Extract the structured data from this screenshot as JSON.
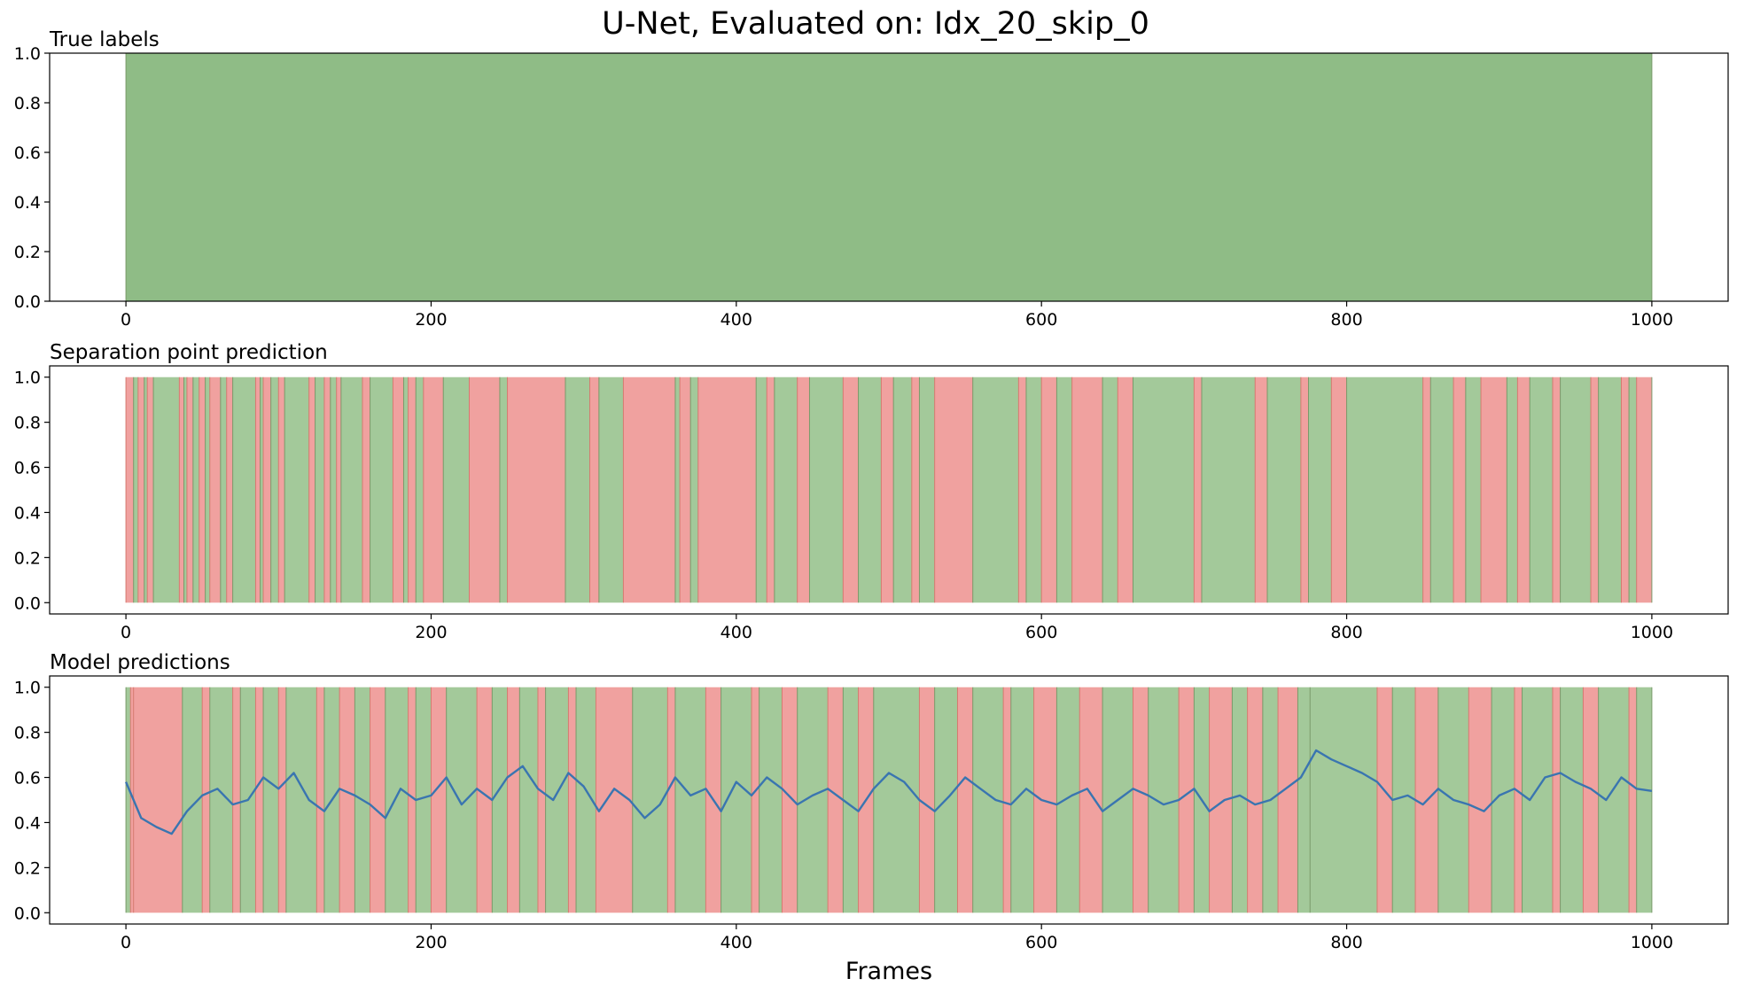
{
  "figure": {
    "title": "U-Net, Evaluated on: Idx_20_skip_0",
    "xlabel": "Frames"
  },
  "colors": {
    "positive": "#8fbc86",
    "positive_light": "#a3c99a",
    "negative": "#f0a19f",
    "line": "#3a75b0",
    "axes": "#000000"
  },
  "chart_data": [
    {
      "type": "area",
      "title": "True labels",
      "xlim": [
        -50,
        1050
      ],
      "ylim": [
        0,
        1
      ],
      "xticks": [
        "0",
        "200",
        "400",
        "600",
        "800",
        "1000"
      ],
      "yticks": [
        "0.0",
        "0.2",
        "0.4",
        "0.6",
        "0.8",
        "1.0"
      ],
      "segments": [
        {
          "start": 0,
          "end": 1000,
          "label": 1
        }
      ]
    },
    {
      "type": "area",
      "title": "Separation point prediction",
      "xlim": [
        -50,
        1050
      ],
      "ylim": [
        -0.05,
        1.05
      ],
      "xticks": [
        "0",
        "200",
        "400",
        "600",
        "800",
        "1000"
      ],
      "yticks": [
        "0.0",
        "0.2",
        "0.4",
        "0.6",
        "0.8",
        "1.0"
      ],
      "segments": [
        {
          "start": 0,
          "end": 5,
          "label": 0
        },
        {
          "start": 5,
          "end": 8,
          "label": 1
        },
        {
          "start": 8,
          "end": 12,
          "label": 0
        },
        {
          "start": 12,
          "end": 14,
          "label": 1
        },
        {
          "start": 14,
          "end": 18,
          "label": 0
        },
        {
          "start": 18,
          "end": 35,
          "label": 1
        },
        {
          "start": 35,
          "end": 38,
          "label": 0
        },
        {
          "start": 38,
          "end": 40,
          "label": 1
        },
        {
          "start": 40,
          "end": 44,
          "label": 0
        },
        {
          "start": 44,
          "end": 48,
          "label": 1
        },
        {
          "start": 48,
          "end": 52,
          "label": 0
        },
        {
          "start": 52,
          "end": 55,
          "label": 1
        },
        {
          "start": 55,
          "end": 62,
          "label": 0
        },
        {
          "start": 62,
          "end": 66,
          "label": 1
        },
        {
          "start": 66,
          "end": 70,
          "label": 0
        },
        {
          "start": 70,
          "end": 85,
          "label": 1
        },
        {
          "start": 85,
          "end": 88,
          "label": 0
        },
        {
          "start": 88,
          "end": 90,
          "label": 1
        },
        {
          "start": 90,
          "end": 95,
          "label": 0
        },
        {
          "start": 95,
          "end": 100,
          "label": 1
        },
        {
          "start": 100,
          "end": 104,
          "label": 0
        },
        {
          "start": 104,
          "end": 120,
          "label": 1
        },
        {
          "start": 120,
          "end": 124,
          "label": 0
        },
        {
          "start": 124,
          "end": 130,
          "label": 1
        },
        {
          "start": 130,
          "end": 134,
          "label": 0
        },
        {
          "start": 134,
          "end": 138,
          "label": 1
        },
        {
          "start": 138,
          "end": 141,
          "label": 0
        },
        {
          "start": 141,
          "end": 155,
          "label": 1
        },
        {
          "start": 155,
          "end": 160,
          "label": 0
        },
        {
          "start": 160,
          "end": 175,
          "label": 1
        },
        {
          "start": 175,
          "end": 182,
          "label": 0
        },
        {
          "start": 182,
          "end": 185,
          "label": 1
        },
        {
          "start": 185,
          "end": 190,
          "label": 0
        },
        {
          "start": 190,
          "end": 195,
          "label": 1
        },
        {
          "start": 195,
          "end": 208,
          "label": 0
        },
        {
          "start": 208,
          "end": 225,
          "label": 1
        },
        {
          "start": 225,
          "end": 245,
          "label": 0
        },
        {
          "start": 245,
          "end": 250,
          "label": 1
        },
        {
          "start": 250,
          "end": 288,
          "label": 0
        },
        {
          "start": 288,
          "end": 304,
          "label": 1
        },
        {
          "start": 304,
          "end": 310,
          "label": 0
        },
        {
          "start": 310,
          "end": 326,
          "label": 1
        },
        {
          "start": 326,
          "end": 360,
          "label": 0
        },
        {
          "start": 360,
          "end": 363,
          "label": 1
        },
        {
          "start": 363,
          "end": 370,
          "label": 0
        },
        {
          "start": 370,
          "end": 375,
          "label": 1
        },
        {
          "start": 375,
          "end": 413,
          "label": 0
        },
        {
          "start": 413,
          "end": 420,
          "label": 1
        },
        {
          "start": 420,
          "end": 425,
          "label": 0
        },
        {
          "start": 425,
          "end": 440,
          "label": 1
        },
        {
          "start": 440,
          "end": 448,
          "label": 0
        },
        {
          "start": 448,
          "end": 470,
          "label": 1
        },
        {
          "start": 470,
          "end": 480,
          "label": 0
        },
        {
          "start": 480,
          "end": 495,
          "label": 1
        },
        {
          "start": 495,
          "end": 503,
          "label": 0
        },
        {
          "start": 503,
          "end": 515,
          "label": 1
        },
        {
          "start": 515,
          "end": 520,
          "label": 0
        },
        {
          "start": 520,
          "end": 530,
          "label": 1
        },
        {
          "start": 530,
          "end": 555,
          "label": 0
        },
        {
          "start": 555,
          "end": 585,
          "label": 1
        },
        {
          "start": 585,
          "end": 590,
          "label": 0
        },
        {
          "start": 590,
          "end": 600,
          "label": 1
        },
        {
          "start": 600,
          "end": 610,
          "label": 0
        },
        {
          "start": 610,
          "end": 620,
          "label": 1
        },
        {
          "start": 620,
          "end": 640,
          "label": 0
        },
        {
          "start": 640,
          "end": 650,
          "label": 1
        },
        {
          "start": 650,
          "end": 660,
          "label": 0
        },
        {
          "start": 660,
          "end": 700,
          "label": 1
        },
        {
          "start": 700,
          "end": 705,
          "label": 0
        },
        {
          "start": 705,
          "end": 740,
          "label": 1
        },
        {
          "start": 740,
          "end": 748,
          "label": 0
        },
        {
          "start": 748,
          "end": 770,
          "label": 1
        },
        {
          "start": 770,
          "end": 775,
          "label": 0
        },
        {
          "start": 775,
          "end": 790,
          "label": 1
        },
        {
          "start": 790,
          "end": 800,
          "label": 0
        },
        {
          "start": 800,
          "end": 850,
          "label": 1
        },
        {
          "start": 850,
          "end": 855,
          "label": 0
        },
        {
          "start": 855,
          "end": 870,
          "label": 1
        },
        {
          "start": 870,
          "end": 878,
          "label": 0
        },
        {
          "start": 878,
          "end": 888,
          "label": 1
        },
        {
          "start": 888,
          "end": 905,
          "label": 0
        },
        {
          "start": 905,
          "end": 912,
          "label": 1
        },
        {
          "start": 912,
          "end": 920,
          "label": 0
        },
        {
          "start": 920,
          "end": 935,
          "label": 1
        },
        {
          "start": 935,
          "end": 940,
          "label": 0
        },
        {
          "start": 940,
          "end": 960,
          "label": 1
        },
        {
          "start": 960,
          "end": 965,
          "label": 0
        },
        {
          "start": 965,
          "end": 980,
          "label": 1
        },
        {
          "start": 980,
          "end": 985,
          "label": 0
        },
        {
          "start": 985,
          "end": 990,
          "label": 1
        },
        {
          "start": 990,
          "end": 1000,
          "label": 0
        }
      ]
    },
    {
      "type": "line",
      "title": "Model predictions",
      "xlim": [
        -50,
        1050
      ],
      "ylim": [
        -0.05,
        1.05
      ],
      "xticks": [
        "0",
        "200",
        "400",
        "600",
        "800",
        "1000"
      ],
      "yticks": [
        "0.0",
        "0.2",
        "0.4",
        "0.6",
        "0.8",
        "1.0"
      ],
      "segments": [
        {
          "start": 0,
          "end": 3,
          "label": 1
        },
        {
          "start": 3,
          "end": 5,
          "label": 0
        },
        {
          "start": 5,
          "end": 37,
          "label": 0
        },
        {
          "start": 37,
          "end": 50,
          "label": 1
        },
        {
          "start": 50,
          "end": 55,
          "label": 0
        },
        {
          "start": 55,
          "end": 70,
          "label": 1
        },
        {
          "start": 70,
          "end": 75,
          "label": 0
        },
        {
          "start": 75,
          "end": 85,
          "label": 1
        },
        {
          "start": 85,
          "end": 90,
          "label": 0
        },
        {
          "start": 90,
          "end": 100,
          "label": 1
        },
        {
          "start": 100,
          "end": 105,
          "label": 0
        },
        {
          "start": 105,
          "end": 125,
          "label": 1
        },
        {
          "start": 125,
          "end": 130,
          "label": 0
        },
        {
          "start": 130,
          "end": 140,
          "label": 1
        },
        {
          "start": 140,
          "end": 150,
          "label": 0
        },
        {
          "start": 150,
          "end": 160,
          "label": 1
        },
        {
          "start": 160,
          "end": 170,
          "label": 0
        },
        {
          "start": 170,
          "end": 185,
          "label": 1
        },
        {
          "start": 185,
          "end": 190,
          "label": 0
        },
        {
          "start": 190,
          "end": 200,
          "label": 1
        },
        {
          "start": 200,
          "end": 210,
          "label": 0
        },
        {
          "start": 210,
          "end": 230,
          "label": 1
        },
        {
          "start": 230,
          "end": 240,
          "label": 0
        },
        {
          "start": 240,
          "end": 250,
          "label": 1
        },
        {
          "start": 250,
          "end": 258,
          "label": 0
        },
        {
          "start": 258,
          "end": 270,
          "label": 1
        },
        {
          "start": 270,
          "end": 275,
          "label": 0
        },
        {
          "start": 275,
          "end": 290,
          "label": 1
        },
        {
          "start": 290,
          "end": 295,
          "label": 0
        },
        {
          "start": 295,
          "end": 308,
          "label": 1
        },
        {
          "start": 308,
          "end": 332,
          "label": 0
        },
        {
          "start": 332,
          "end": 355,
          "label": 1
        },
        {
          "start": 355,
          "end": 360,
          "label": 0
        },
        {
          "start": 360,
          "end": 380,
          "label": 1
        },
        {
          "start": 380,
          "end": 390,
          "label": 0
        },
        {
          "start": 390,
          "end": 410,
          "label": 1
        },
        {
          "start": 410,
          "end": 415,
          "label": 0
        },
        {
          "start": 415,
          "end": 430,
          "label": 1
        },
        {
          "start": 430,
          "end": 440,
          "label": 0
        },
        {
          "start": 440,
          "end": 460,
          "label": 1
        },
        {
          "start": 460,
          "end": 470,
          "label": 0
        },
        {
          "start": 470,
          "end": 480,
          "label": 1
        },
        {
          "start": 480,
          "end": 490,
          "label": 0
        },
        {
          "start": 490,
          "end": 520,
          "label": 1
        },
        {
          "start": 520,
          "end": 530,
          "label": 0
        },
        {
          "start": 530,
          "end": 545,
          "label": 1
        },
        {
          "start": 545,
          "end": 555,
          "label": 0
        },
        {
          "start": 555,
          "end": 575,
          "label": 1
        },
        {
          "start": 575,
          "end": 580,
          "label": 0
        },
        {
          "start": 580,
          "end": 595,
          "label": 1
        },
        {
          "start": 595,
          "end": 610,
          "label": 0
        },
        {
          "start": 610,
          "end": 625,
          "label": 1
        },
        {
          "start": 625,
          "end": 640,
          "label": 0
        },
        {
          "start": 640,
          "end": 660,
          "label": 1
        },
        {
          "start": 660,
          "end": 670,
          "label": 0
        },
        {
          "start": 670,
          "end": 690,
          "label": 1
        },
        {
          "start": 690,
          "end": 700,
          "label": 0
        },
        {
          "start": 700,
          "end": 710,
          "label": 1
        },
        {
          "start": 710,
          "end": 725,
          "label": 0
        },
        {
          "start": 725,
          "end": 735,
          "label": 1
        },
        {
          "start": 735,
          "end": 745,
          "label": 0
        },
        {
          "start": 745,
          "end": 755,
          "label": 1
        },
        {
          "start": 755,
          "end": 768,
          "label": 0
        },
        {
          "start": 768,
          "end": 776,
          "label": 1
        },
        {
          "start": 776,
          "end": 820,
          "label": 1
        },
        {
          "start": 820,
          "end": 830,
          "label": 0
        },
        {
          "start": 830,
          "end": 845,
          "label": 1
        },
        {
          "start": 845,
          "end": 860,
          "label": 0
        },
        {
          "start": 860,
          "end": 880,
          "label": 1
        },
        {
          "start": 880,
          "end": 895,
          "label": 0
        },
        {
          "start": 895,
          "end": 910,
          "label": 1
        },
        {
          "start": 910,
          "end": 915,
          "label": 0
        },
        {
          "start": 915,
          "end": 935,
          "label": 1
        },
        {
          "start": 935,
          "end": 940,
          "label": 0
        },
        {
          "start": 940,
          "end": 955,
          "label": 1
        },
        {
          "start": 955,
          "end": 965,
          "label": 0
        },
        {
          "start": 965,
          "end": 985,
          "label": 1
        },
        {
          "start": 985,
          "end": 990,
          "label": 0
        },
        {
          "start": 990,
          "end": 1000,
          "label": 1
        }
      ],
      "series": {
        "x_start": 0,
        "x_step": 10,
        "y": [
          0.58,
          0.42,
          0.38,
          0.35,
          0.45,
          0.52,
          0.55,
          0.48,
          0.5,
          0.6,
          0.55,
          0.62,
          0.5,
          0.45,
          0.55,
          0.52,
          0.48,
          0.42,
          0.55,
          0.5,
          0.52,
          0.6,
          0.48,
          0.55,
          0.5,
          0.6,
          0.65,
          0.55,
          0.5,
          0.62,
          0.56,
          0.45,
          0.55,
          0.5,
          0.42,
          0.48,
          0.6,
          0.52,
          0.55,
          0.45,
          0.58,
          0.52,
          0.6,
          0.55,
          0.48,
          0.52,
          0.55,
          0.5,
          0.45,
          0.55,
          0.62,
          0.58,
          0.5,
          0.45,
          0.52,
          0.6,
          0.55,
          0.5,
          0.48,
          0.55,
          0.5,
          0.48,
          0.52,
          0.55,
          0.45,
          0.5,
          0.55,
          0.52,
          0.48,
          0.5,
          0.55,
          0.45,
          0.5,
          0.52,
          0.48,
          0.5,
          0.55,
          0.6,
          0.72,
          0.68,
          0.65,
          0.62,
          0.58,
          0.5,
          0.52,
          0.48,
          0.55,
          0.5,
          0.48,
          0.45,
          0.52,
          0.55,
          0.5,
          0.6,
          0.62,
          0.58,
          0.55,
          0.5,
          0.6,
          0.55,
          0.54
        ]
      }
    }
  ]
}
